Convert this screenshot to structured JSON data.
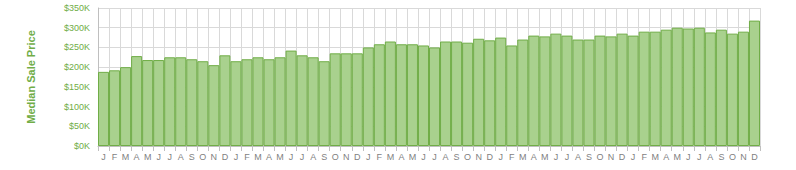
{
  "chart_data": {
    "type": "bar",
    "y_label": "Median Sale Price",
    "categories": [
      "J",
      "F",
      "M",
      "A",
      "M",
      "J",
      "J",
      "A",
      "S",
      "O",
      "N",
      "D",
      "J",
      "F",
      "M",
      "A",
      "M",
      "J",
      "J",
      "A",
      "S",
      "O",
      "N",
      "D",
      "J",
      "F",
      "M",
      "A",
      "M",
      "J",
      "J",
      "A",
      "S",
      "O",
      "N",
      "D",
      "J",
      "F",
      "M",
      "A",
      "M",
      "J",
      "J",
      "A",
      "S",
      "O",
      "N",
      "D",
      "J",
      "F",
      "M",
      "A",
      "M",
      "J",
      "J",
      "A",
      "S",
      "O",
      "N",
      "D"
    ],
    "values": [
      188000,
      192000,
      200000,
      228000,
      218000,
      218000,
      225000,
      225000,
      220000,
      215000,
      205000,
      230000,
      215000,
      220000,
      225000,
      220000,
      225000,
      242000,
      230000,
      225000,
      215000,
      235000,
      235000,
      235000,
      250000,
      258000,
      265000,
      258000,
      258000,
      255000,
      250000,
      265000,
      265000,
      262000,
      272000,
      268000,
      275000,
      255000,
      270000,
      280000,
      278000,
      285000,
      280000,
      270000,
      270000,
      280000,
      278000,
      285000,
      280000,
      290000,
      290000,
      295000,
      300000,
      298000,
      300000,
      288000,
      295000,
      285000,
      290000,
      318000
    ],
    "color": "#a9d18e",
    "ylim": [
      0,
      350000
    ],
    "yticks": [
      {
        "value": 0,
        "label": "$0K"
      },
      {
        "value": 50000,
        "label": "$50K"
      },
      {
        "value": 100000,
        "label": "$100K"
      },
      {
        "value": 150000,
        "label": "$150K"
      },
      {
        "value": 200000,
        "label": "$200K"
      },
      {
        "value": 250000,
        "label": "$250K"
      },
      {
        "value": 300000,
        "label": "$300K"
      },
      {
        "value": 350000,
        "label": "$350K"
      }
    ],
    "grid": true
  }
}
